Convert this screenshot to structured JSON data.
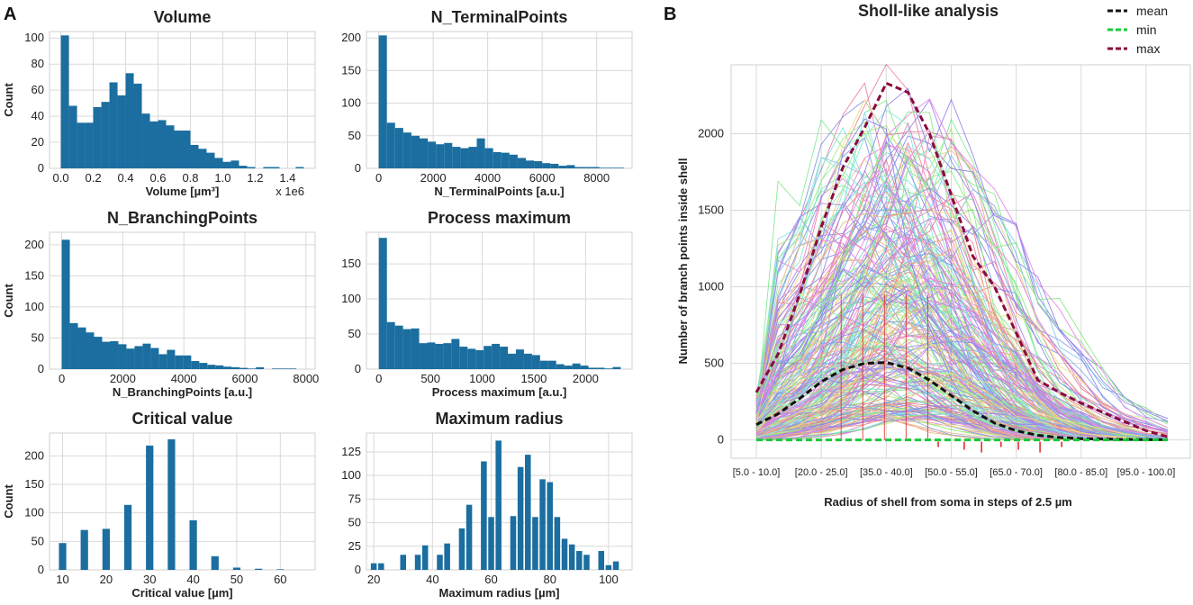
{
  "panel_labels": [
    "A",
    "B"
  ],
  "colors": {
    "bar": "#1b6e9f",
    "mean": "#111111",
    "min": "#18c93a",
    "max": "#8b0a3d",
    "marker": "#e02020"
  },
  "chart_data": [
    {
      "type": "bar",
      "title": "Volume",
      "xlabel": "Volume [µm³]",
      "ylabel": "Count",
      "x_multiplier": "x 1e6",
      "xlim": [
        -0.07,
        1.57
      ],
      "ylim": [
        0,
        105
      ],
      "xticks": [
        0.0,
        0.2,
        0.4,
        0.6,
        0.8,
        1.0,
        1.2,
        1.4
      ],
      "xtick_labels": [
        "0.0",
        "0.2",
        "0.4",
        "0.6",
        "0.8",
        "1.0",
        "1.2",
        "1.4"
      ],
      "yticks": [
        0,
        20,
        40,
        60,
        80,
        100
      ],
      "bin_start": 0.0,
      "bin_width": 0.05,
      "values": [
        102,
        48,
        35,
        35,
        47,
        51,
        66,
        56,
        73,
        65,
        42,
        36,
        37,
        33,
        29,
        29,
        18,
        15,
        12,
        8,
        5,
        6,
        2,
        1,
        0,
        1,
        1,
        0,
        0,
        1
      ]
    },
    {
      "type": "bar",
      "title": "N_TerminalPoints",
      "xlabel": "N_TerminalPoints [a.u.]",
      "ylabel": "",
      "xlim": [
        -450,
        9300
      ],
      "ylim": [
        0,
        210
      ],
      "xticks": [
        0,
        2000,
        4000,
        6000,
        8000
      ],
      "xtick_labels": [
        "0",
        "2000",
        "4000",
        "6000",
        "8000"
      ],
      "yticks": [
        0,
        50,
        100,
        150,
        200
      ],
      "bin_start": 0,
      "bin_width": 300,
      "values": [
        204,
        70,
        62,
        55,
        50,
        46,
        41,
        37,
        39,
        33,
        31,
        33,
        46,
        31,
        25,
        24,
        21,
        16,
        12,
        11,
        8,
        7,
        4,
        5,
        2,
        2,
        2,
        1,
        1,
        1
      ]
    },
    {
      "type": "bar",
      "title": "N_BranchingPoints",
      "xlabel": "N_BranchingPoints [a.u.]",
      "ylabel": "Count",
      "xlim": [
        -400,
        8300
      ],
      "ylim": [
        0,
        220
      ],
      "xticks": [
        0,
        2000,
        4000,
        6000,
        8000
      ],
      "xtick_labels": [
        "0",
        "2000",
        "4000",
        "6000",
        "8000"
      ],
      "yticks": [
        0,
        50,
        100,
        150,
        200
      ],
      "bin_start": 0,
      "bin_width": 265,
      "values": [
        208,
        74,
        67,
        59,
        52,
        44,
        45,
        40,
        33,
        37,
        41,
        34,
        24,
        31,
        22,
        22,
        13,
        10,
        7,
        6,
        4,
        3,
        2,
        1,
        3,
        0,
        1,
        1,
        1,
        0
      ]
    },
    {
      "type": "bar",
      "title": "Process maximum",
      "xlabel": "Process maximum [a.u.]",
      "ylabel": "",
      "xlim": [
        -120,
        2450
      ],
      "ylim": [
        0,
        195
      ],
      "xticks": [
        0,
        500,
        1000,
        1500,
        2000
      ],
      "xtick_labels": [
        "0",
        "500",
        "1000",
        "1500",
        "2000"
      ],
      "yticks": [
        0,
        50,
        100,
        150
      ],
      "bin_start": 0,
      "bin_width": 78,
      "values": [
        187,
        67,
        62,
        57,
        58,
        37,
        38,
        36,
        37,
        43,
        32,
        29,
        27,
        33,
        36,
        32,
        22,
        28,
        22,
        20,
        12,
        12,
        7,
        5,
        8,
        5,
        2,
        2,
        1,
        3
      ]
    },
    {
      "type": "bar",
      "title": "Critical value",
      "xlabel": "Critical value [µm]",
      "ylabel": "Count",
      "xlim": [
        7,
        68
      ],
      "ylim": [
        0,
        240
      ],
      "xticks": [
        10,
        20,
        30,
        40,
        50,
        60
      ],
      "xtick_labels": [
        "10",
        "20",
        "30",
        "40",
        "50",
        "60"
      ],
      "yticks": [
        0,
        50,
        100,
        150,
        200
      ],
      "bar_width": 1.7,
      "x": [
        10,
        15,
        20,
        25,
        30,
        35,
        40,
        45,
        50,
        55,
        60
      ],
      "values": [
        47,
        70,
        72,
        114,
        218,
        229,
        87,
        24,
        4,
        2,
        1
      ]
    },
    {
      "type": "bar",
      "title": "Maximum radius",
      "xlabel": "Maximum radius [µm]",
      "ylabel": "",
      "xlim": [
        17.5,
        108
      ],
      "ylim": [
        0,
        145
      ],
      "xticks": [
        20,
        40,
        60,
        80,
        100
      ],
      "xtick_labels": [
        "20",
        "40",
        "60",
        "80",
        "100"
      ],
      "yticks": [
        0,
        25,
        50,
        75,
        100,
        125
      ],
      "bar_width": 2.0,
      "x": [
        20,
        22.5,
        30,
        35,
        37.5,
        42.5,
        45,
        50,
        52.5,
        57.5,
        60,
        62.5,
        67.5,
        70,
        72.5,
        75,
        77.5,
        80,
        82.5,
        85,
        87.5,
        90,
        92.5,
        97.5,
        100,
        102.5
      ],
      "values": [
        7,
        7,
        16,
        16,
        26,
        16,
        28,
        44,
        69,
        115,
        56,
        137,
        57,
        109,
        122,
        56,
        96,
        93,
        56,
        33,
        27,
        20,
        16,
        20,
        5,
        9
      ]
    },
    {
      "type": "line",
      "title": "Sholl-like analysis",
      "xlabel": "Radius of shell from soma in steps of 2.5 µm",
      "ylabel": "Number of branch points inside shell",
      "ylim": [
        -120,
        2450
      ],
      "yticks": [
        0,
        500,
        1000,
        1500,
        2000
      ],
      "xtick_labels": [
        "[5.0 - 10.0]",
        "[20.0 - 25.0]",
        "[35.0 - 40.0]",
        "[50.0 - 55.0]",
        "[65.0 - 70.0]",
        "[80.0 - 85.0]",
        "[95.0 - 100.0]"
      ],
      "shells": 20,
      "legend": [
        "mean",
        "min",
        "max"
      ],
      "legend_position": "top-right",
      "series": [
        {
          "name": "mean",
          "style": "dashed",
          "values": [
            100,
            170,
            270,
            380,
            460,
            500,
            505,
            470,
            390,
            290,
            190,
            110,
            60,
            30,
            15,
            8,
            5,
            3,
            2,
            1
          ]
        },
        {
          "name": "min",
          "style": "dashed",
          "values": [
            0,
            0,
            0,
            0,
            0,
            0,
            0,
            0,
            0,
            0,
            0,
            0,
            0,
            0,
            0,
            0,
            0,
            0,
            0,
            0
          ]
        },
        {
          "name": "max",
          "style": "dashed",
          "values": [
            310,
            560,
            950,
            1390,
            1780,
            2040,
            2330,
            2270,
            2000,
            1600,
            1200,
            1000,
            700,
            390,
            310,
            240,
            180,
            120,
            60,
            20
          ]
        }
      ],
      "background_lines": 250
    }
  ]
}
